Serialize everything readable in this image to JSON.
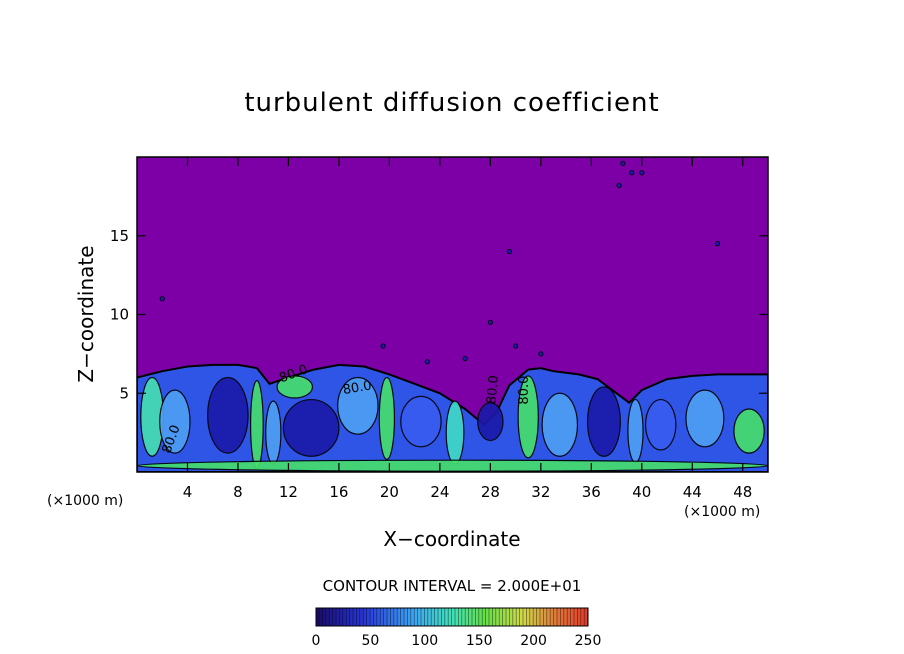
{
  "chart_data": {
    "type": "heatmap",
    "title": "turbulent diffusion coefficient",
    "xlabel": "X−coordinate",
    "ylabel": "Z−coordinate",
    "x_unit_left": "(×1000 m)",
    "x_unit_right": "(×1000 m)",
    "xlim": [
      0,
      50
    ],
    "ylim": [
      0,
      20
    ],
    "x_ticks": [
      4,
      8,
      12,
      16,
      20,
      24,
      28,
      32,
      36,
      40,
      44,
      48
    ],
    "y_ticks": [
      5,
      10,
      15
    ],
    "contour_interval_text": "CONTOUR INTERVAL = 2.000E+01",
    "contour_labels": [
      "80.0",
      "80.0",
      "80.0",
      "80.0",
      "80.0"
    ],
    "colorbar": {
      "min": 0,
      "max": 250,
      "ticks": [
        0,
        50,
        100,
        150,
        200,
        250
      ]
    },
    "background_value": 0,
    "boundary_layer_top": [
      [
        0,
        6.0
      ],
      [
        2,
        6.4
      ],
      [
        4,
        6.7
      ],
      [
        6,
        6.8
      ],
      [
        8,
        6.8
      ],
      [
        9.5,
        6.6
      ],
      [
        10.5,
        5.6
      ],
      [
        12,
        6.0
      ],
      [
        14,
        6.5
      ],
      [
        16,
        6.8
      ],
      [
        18,
        6.7
      ],
      [
        20,
        6.2
      ],
      [
        22,
        5.6
      ],
      [
        24,
        5.0
      ],
      [
        26,
        4.0
      ],
      [
        27.5,
        3.0
      ],
      [
        28.5,
        3.8
      ],
      [
        29.5,
        5.5
      ],
      [
        31,
        6.5
      ],
      [
        32,
        6.6
      ],
      [
        33,
        6.4
      ],
      [
        35,
        6.2
      ],
      [
        36.5,
        5.9
      ],
      [
        38,
        5.0
      ],
      [
        39,
        4.4
      ],
      [
        40,
        5.2
      ],
      [
        42,
        5.9
      ],
      [
        44,
        6.1
      ],
      [
        46,
        6.2
      ],
      [
        48,
        6.2
      ],
      [
        50,
        6.2
      ]
    ],
    "colors": {
      "background": "#7c00a6",
      "low": "#1a1aa8",
      "mid_low": "#3a5cf0",
      "mid": "#4fa0f5",
      "high": "#3fdcc8",
      "peak": "#46e06a"
    }
  }
}
